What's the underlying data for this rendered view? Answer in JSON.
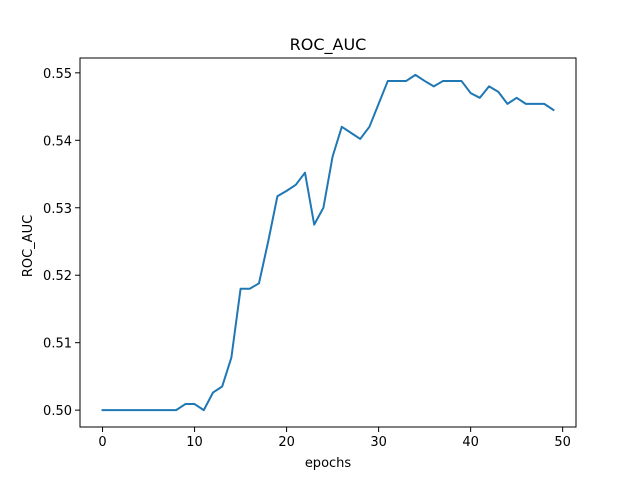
{
  "chart_data": {
    "type": "line",
    "title": "ROC_AUC",
    "xlabel": "epochs",
    "ylabel": "ROC_AUC",
    "xlim": [
      -2.45,
      51.45
    ],
    "ylim": [
      0.4975,
      0.5522
    ],
    "xticks": [
      0,
      10,
      20,
      30,
      40,
      50
    ],
    "yticks": [
      0.5,
      0.51,
      0.52,
      0.53,
      0.54,
      0.55
    ],
    "ytick_labels": [
      "0.50",
      "0.51",
      "0.52",
      "0.53",
      "0.54",
      "0.55"
    ],
    "grid": false,
    "series": [
      {
        "color": "#1f77b4",
        "x": [
          0,
          1,
          2,
          3,
          4,
          5,
          6,
          7,
          8,
          9,
          10,
          11,
          12,
          13,
          14,
          15,
          16,
          17,
          18,
          19,
          20,
          21,
          22,
          23,
          24,
          25,
          26,
          27,
          28,
          29,
          30,
          31,
          32,
          33,
          34,
          35,
          36,
          37,
          38,
          39,
          40,
          41,
          42,
          43,
          44,
          45,
          46,
          47,
          48,
          49
        ],
        "y": [
          0.5,
          0.5,
          0.5,
          0.5,
          0.5,
          0.5,
          0.5,
          0.5,
          0.5,
          0.5009,
          0.5009,
          0.5,
          0.5026,
          0.5035,
          0.5078,
          0.518,
          0.518,
          0.5188,
          0.525,
          0.5317,
          0.5325,
          0.5334,
          0.5352,
          0.5275,
          0.53,
          0.5376,
          0.542,
          0.5411,
          0.5402,
          0.542,
          0.5454,
          0.5488,
          0.5488,
          0.5488,
          0.5497,
          0.5488,
          0.548,
          0.5488,
          0.5488,
          0.5488,
          0.547,
          0.5463,
          0.548,
          0.5472,
          0.5454,
          0.5463,
          0.5454,
          0.5454,
          0.5454,
          0.5445
        ]
      }
    ]
  }
}
